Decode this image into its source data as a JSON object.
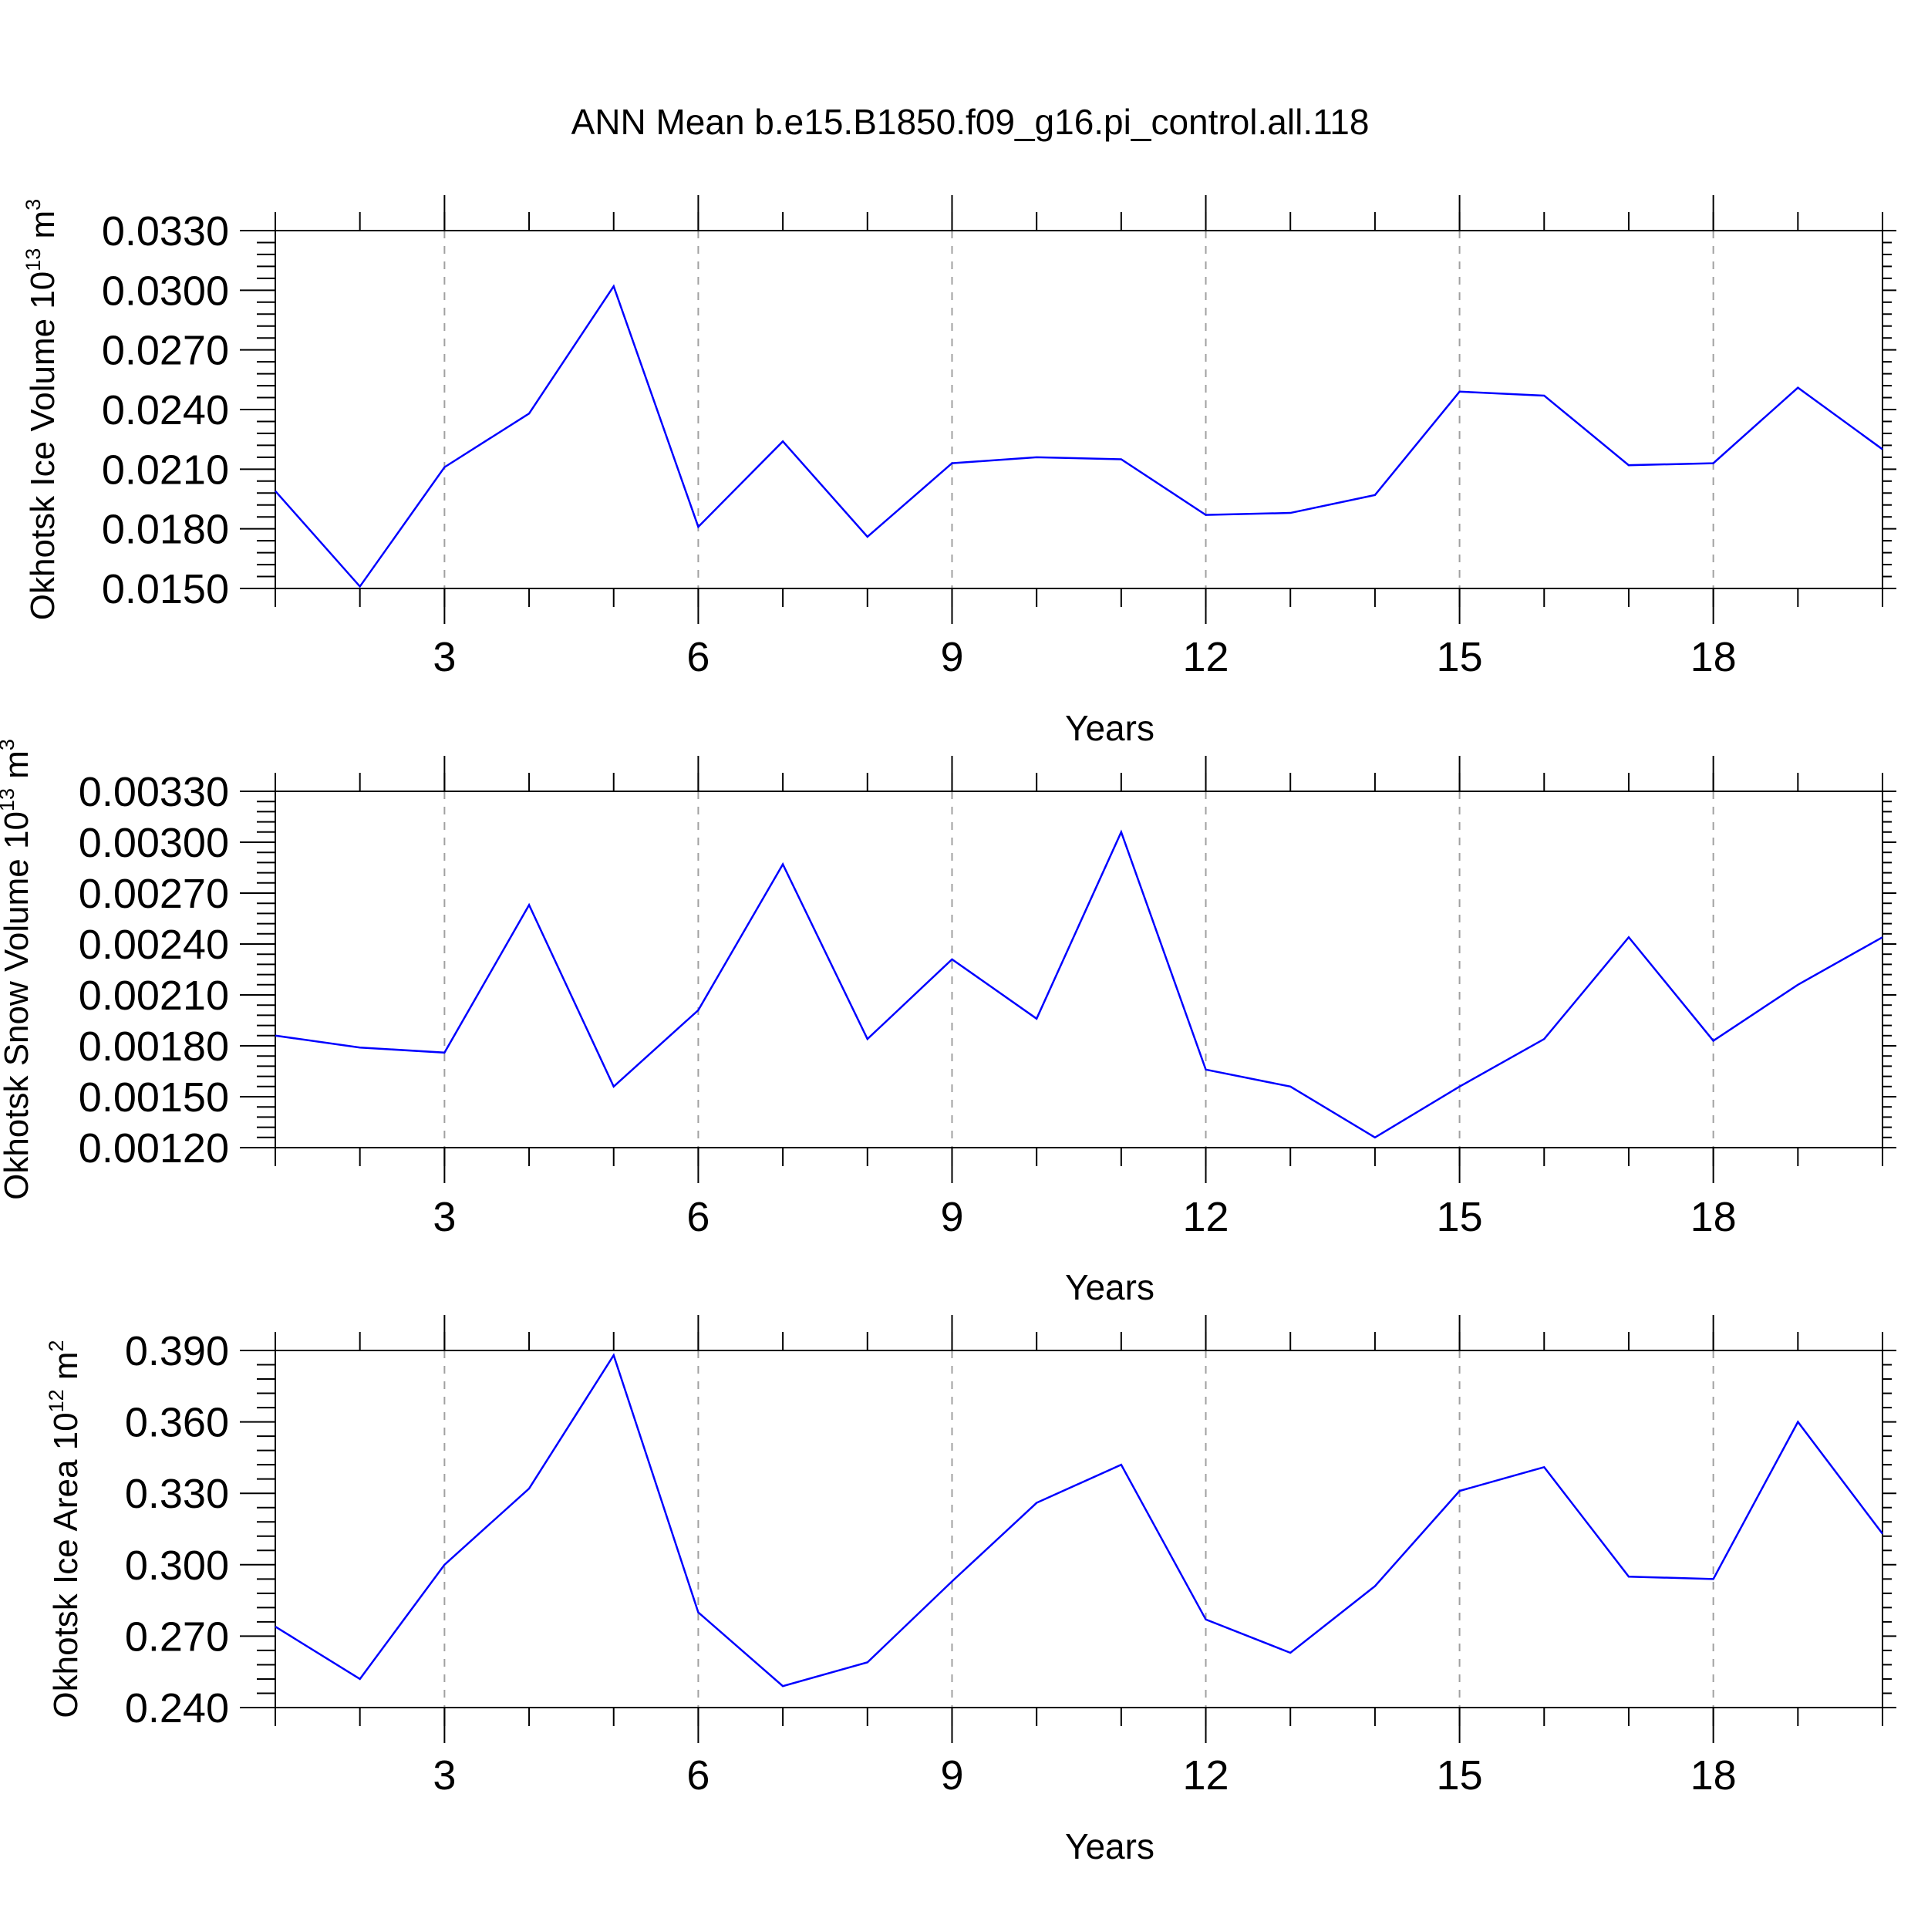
{
  "figure_title": "ANN Mean b.e15.B1850.f09_g16.pi_control.all.118",
  "chart_data": [
    {
      "type": "line",
      "ylabel": {
        "text": "Okhotsk Ice Volume 10",
        "sup": "13",
        "unit": " m",
        "unit_sup": "3"
      },
      "xlabel": "Years",
      "xlim": [
        1,
        20
      ],
      "ylim": [
        0.015,
        0.033
      ],
      "x_ticks": [
        3,
        6,
        9,
        12,
        15,
        18
      ],
      "x_tick_labels": [
        "3",
        "6",
        "9",
        "12",
        "15",
        "18"
      ],
      "y_ticks": [
        0.015,
        0.018,
        0.021,
        0.024,
        0.027,
        0.03,
        0.033
      ],
      "y_tick_labels": [
        "0.0150",
        "0.0180",
        "0.0210",
        "0.0240",
        "0.0270",
        "0.0300",
        "0.0330"
      ],
      "grid": "vertical dashed at major x ticks",
      "color": "#0000ff",
      "x": [
        1,
        2,
        3,
        4,
        5,
        6,
        7,
        8,
        9,
        10,
        11,
        12,
        13,
        14,
        15,
        16,
        17,
        18,
        19,
        20
      ],
      "values": [
        0.0199,
        0.0151,
        0.0211,
        0.0238,
        0.0302,
        0.0181,
        0.0224,
        0.0176,
        0.0213,
        0.0216,
        0.0215,
        0.0187,
        0.0188,
        0.0197,
        0.0249,
        0.0247,
        0.0212,
        0.0213,
        0.0251,
        0.022
      ]
    },
    {
      "type": "line",
      "ylabel": {
        "text": "Okhotsk Snow Volume 10",
        "sup": "13",
        "unit": " m",
        "unit_sup": "3"
      },
      "xlabel": "Years",
      "xlim": [
        1,
        20
      ],
      "ylim": [
        0.0012,
        0.0033
      ],
      "x_ticks": [
        3,
        6,
        9,
        12,
        15,
        18
      ],
      "x_tick_labels": [
        "3",
        "6",
        "9",
        "12",
        "15",
        "18"
      ],
      "y_ticks": [
        0.0012,
        0.0015,
        0.0018,
        0.0021,
        0.0024,
        0.0027,
        0.003,
        0.0033
      ],
      "y_tick_labels": [
        "0.00120",
        "0.00150",
        "0.00180",
        "0.00210",
        "0.00240",
        "0.00270",
        "0.00300",
        "0.00330"
      ],
      "grid": "vertical dashed at major x ticks",
      "color": "#0000ff",
      "x": [
        1,
        2,
        3,
        4,
        5,
        6,
        7,
        8,
        9,
        10,
        11,
        12,
        13,
        14,
        15,
        16,
        17,
        18,
        19,
        20
      ],
      "values": [
        0.00186,
        0.00179,
        0.00176,
        0.00263,
        0.00156,
        0.00201,
        0.00287,
        0.00184,
        0.00231,
        0.00196,
        0.00306,
        0.00166,
        0.00156,
        0.00126,
        0.00156,
        0.00184,
        0.00244,
        0.00183,
        0.00216,
        0.00244
      ]
    },
    {
      "type": "line",
      "ylabel": {
        "text": "Okhotsk Ice Area 10",
        "sup": "12",
        "unit": " m",
        "unit_sup": "2"
      },
      "xlabel": "Years",
      "xlim": [
        1,
        20
      ],
      "ylim": [
        0.24,
        0.39
      ],
      "x_ticks": [
        3,
        6,
        9,
        12,
        15,
        18
      ],
      "x_tick_labels": [
        "3",
        "6",
        "9",
        "12",
        "15",
        "18"
      ],
      "y_ticks": [
        0.24,
        0.27,
        0.3,
        0.33,
        0.36,
        0.39
      ],
      "y_tick_labels": [
        "0.240",
        "0.270",
        "0.300",
        "0.330",
        "0.360",
        "0.390"
      ],
      "grid": "vertical dashed at major x ticks",
      "color": "#0000ff",
      "x": [
        1,
        2,
        3,
        4,
        5,
        6,
        7,
        8,
        9,
        10,
        11,
        12,
        13,
        14,
        15,
        16,
        17,
        18,
        19,
        20
      ],
      "values": [
        0.274,
        0.252,
        0.3,
        0.332,
        0.388,
        0.28,
        0.249,
        0.259,
        0.293,
        0.326,
        0.342,
        0.277,
        0.263,
        0.291,
        0.331,
        0.341,
        0.295,
        0.294,
        0.36,
        0.313
      ]
    }
  ]
}
